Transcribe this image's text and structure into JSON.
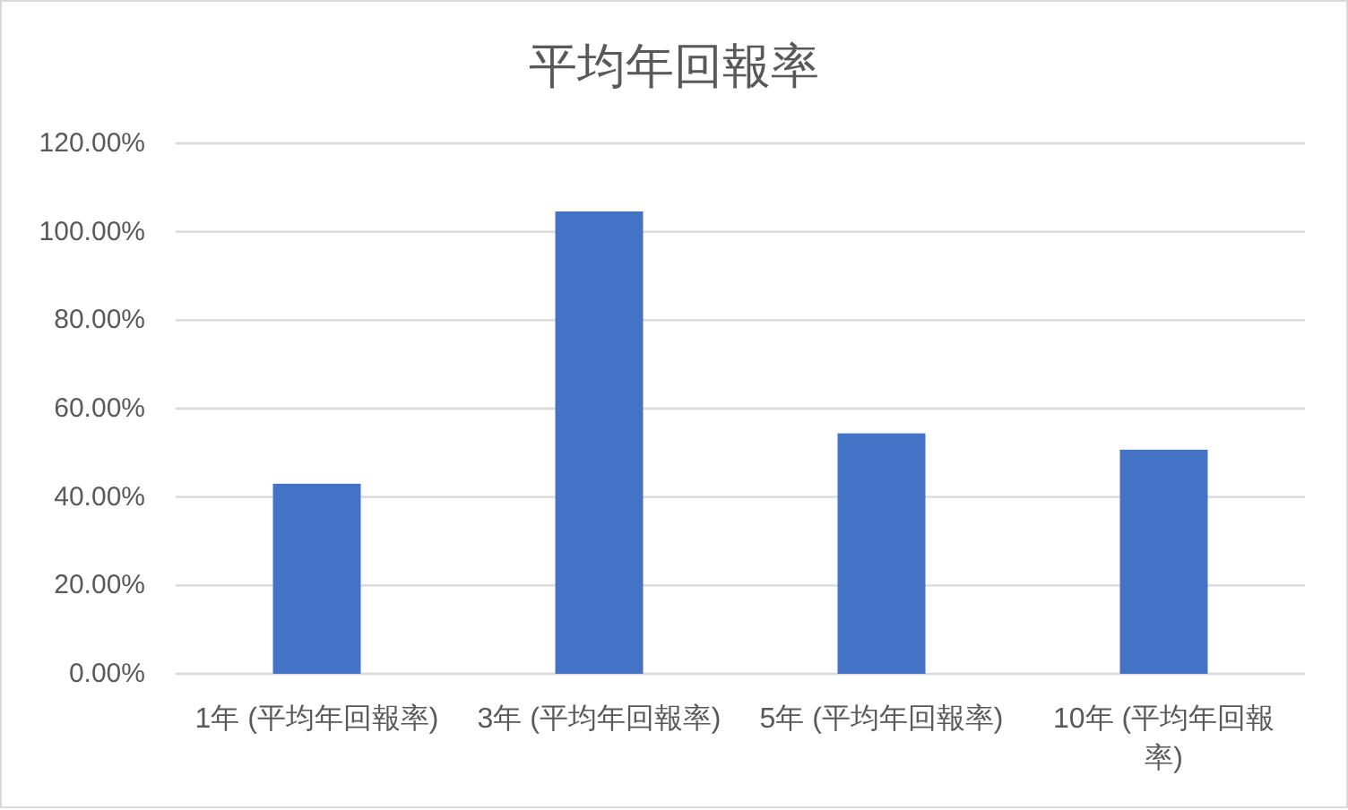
{
  "chart_data": {
    "type": "bar",
    "title": "平均年回報率",
    "categories": [
      "1年 (平均年回報率)",
      "3年 (平均年回報率)",
      "5年 (平均年回報率)",
      "10年 (平均年回報率)"
    ],
    "values": [
      43.0,
      104.6,
      54.4,
      50.7
    ],
    "color": "#4472c4",
    "ylim": [
      0,
      120
    ],
    "yticks": [
      {
        "value": 0,
        "label": "0.00%"
      },
      {
        "value": 20,
        "label": "20.00%"
      },
      {
        "value": 40,
        "label": "40.00%"
      },
      {
        "value": 60,
        "label": "60.00%"
      },
      {
        "value": 80,
        "label": "80.00%"
      },
      {
        "value": 100,
        "label": "100.00%"
      },
      {
        "value": 120,
        "label": "120.00%"
      }
    ],
    "grid": "y"
  }
}
